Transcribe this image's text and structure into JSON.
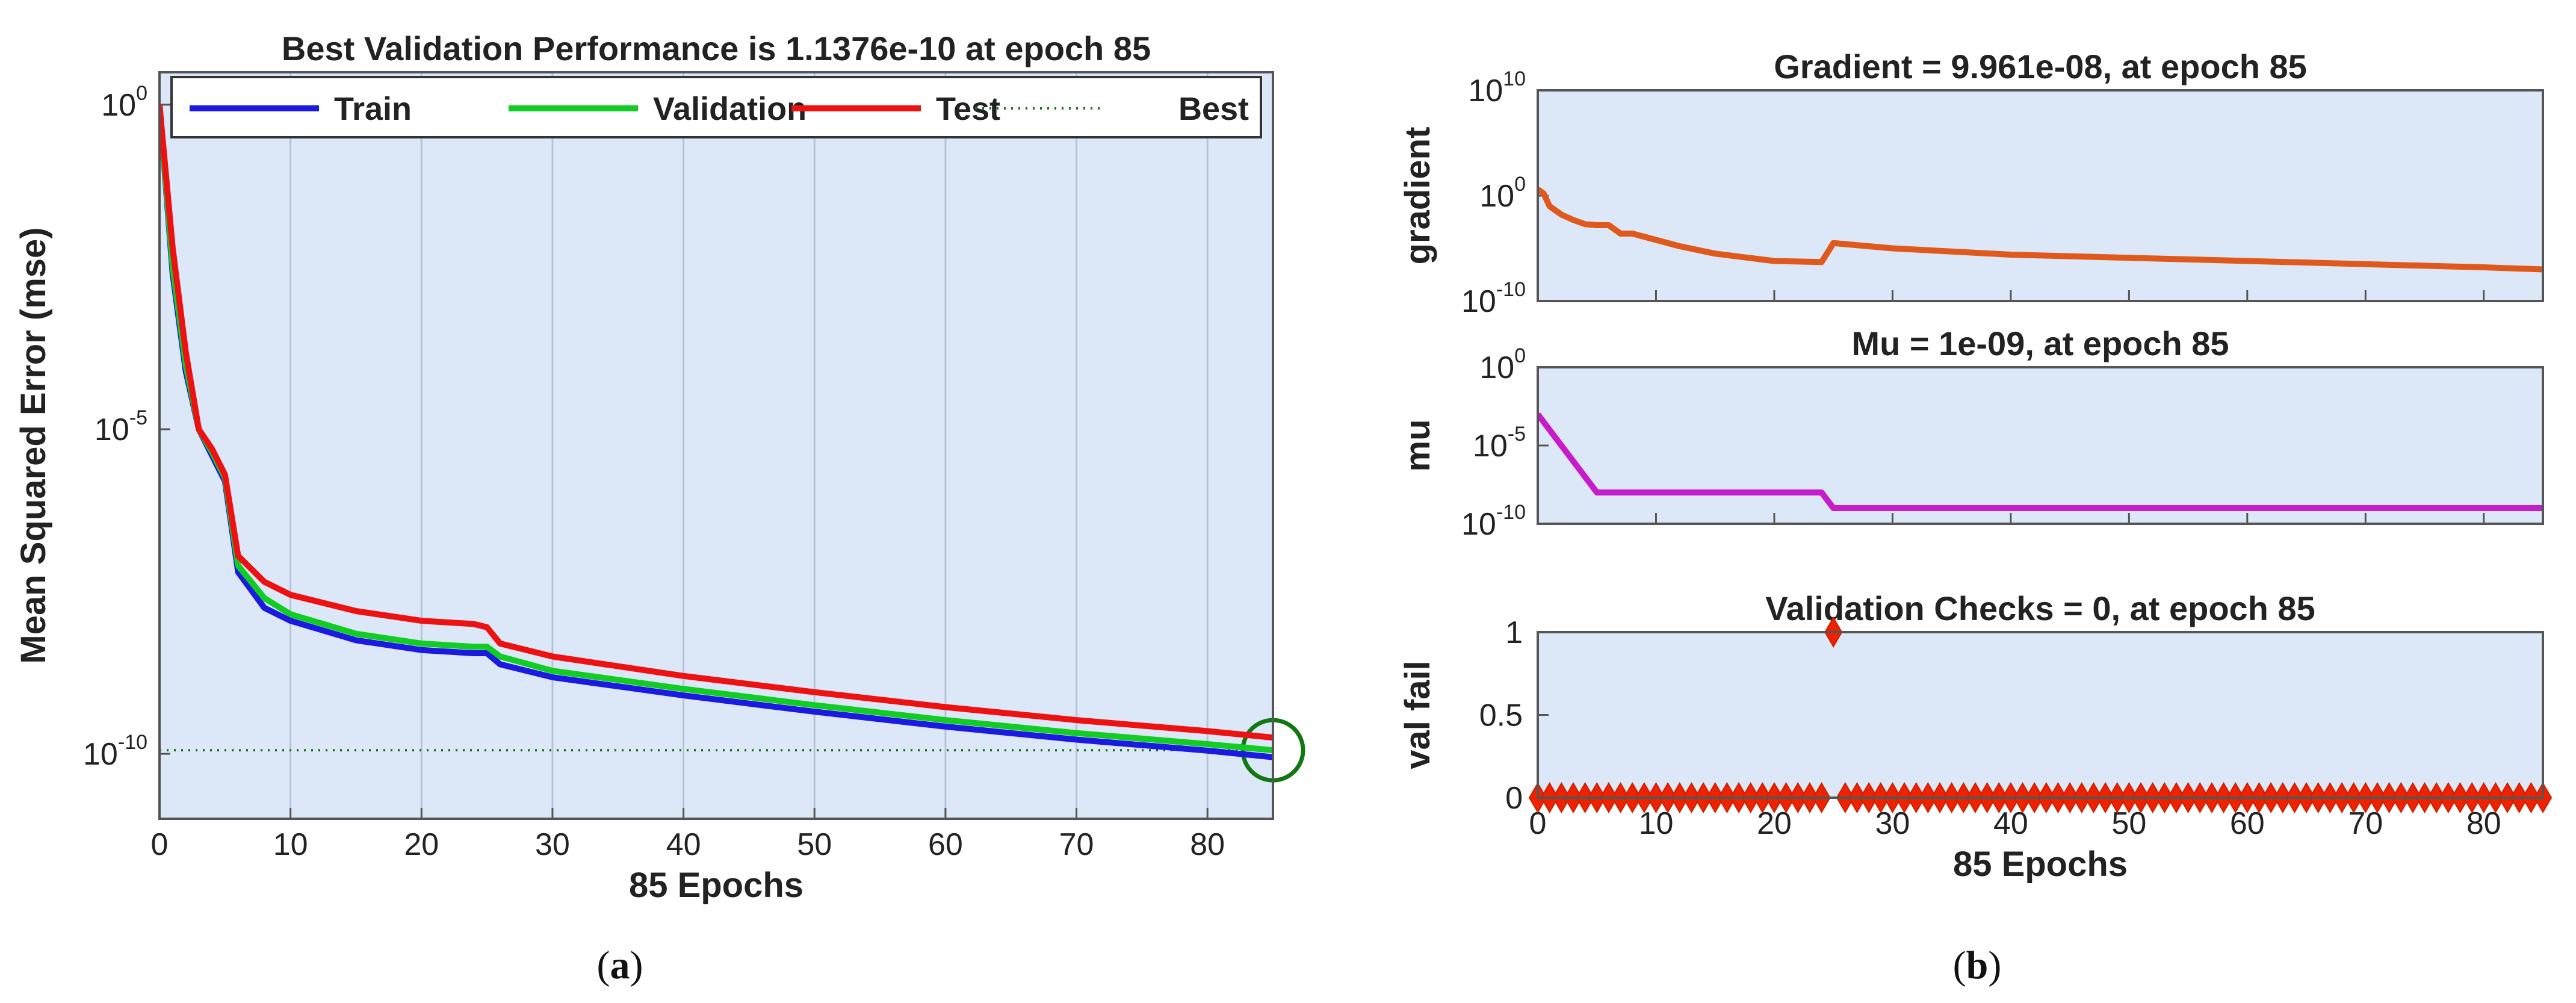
{
  "colors": {
    "plot_bg": "#dce8f7",
    "grid": "#b4c4d8",
    "axis": "#555555",
    "train": "#1a1ae0",
    "validation": "#11cc22",
    "test": "#ee1111",
    "best": "#117711",
    "gradient": "#e0591c",
    "mu": "#c61ccc",
    "valfail": "#ee2200"
  },
  "captions": {
    "a_open": "(",
    "a_letter": "a",
    "a_close": ")",
    "b_open": "(",
    "b_letter": "b",
    "b_close": ")"
  },
  "chart_data": [
    {
      "id": "performance",
      "type": "line",
      "title": "Best Validation Performance is 1.1376e-10 at epoch 85",
      "xlabel": "85 Epochs",
      "ylabel": "Mean Squared Error  (mse)",
      "yscale": "log",
      "xlim": [
        0,
        85
      ],
      "ylim_exp": [
        -11,
        0.5
      ],
      "xticks": [
        0,
        10,
        20,
        30,
        40,
        50,
        60,
        70,
        80
      ],
      "yticks": [
        {
          "base": "10",
          "exp": "0",
          "value_exp": 0
        },
        {
          "base": "10",
          "exp": "-5",
          "value_exp": -5
        },
        {
          "base": "10",
          "exp": "-10",
          "value_exp": -10
        }
      ],
      "legend": [
        {
          "label": "Train",
          "color_key": "train",
          "style": "solid"
        },
        {
          "label": "Validation",
          "color_key": "validation",
          "style": "solid"
        },
        {
          "label": "Test",
          "color_key": "test",
          "style": "solid"
        },
        {
          "label": "Best",
          "color_key": "best",
          "style": "dotted"
        }
      ],
      "best": {
        "epoch": 85,
        "value": 1.1376e-10,
        "log10": -9.944
      },
      "series": [
        {
          "name": "Train",
          "color_key": "train",
          "x": [
            0,
            1,
            2,
            3,
            4,
            5,
            6,
            8,
            10,
            15,
            20,
            24,
            25,
            26,
            30,
            40,
            50,
            60,
            70,
            80,
            85
          ],
          "log10": [
            0,
            -2.6,
            -4.1,
            -5.0,
            -5.4,
            -5.8,
            -7.2,
            -7.75,
            -7.95,
            -8.25,
            -8.4,
            -8.45,
            -8.45,
            -8.62,
            -8.82,
            -9.1,
            -9.35,
            -9.58,
            -9.78,
            -9.95,
            -10.05
          ]
        },
        {
          "name": "Validation",
          "color_key": "validation",
          "x": [
            0,
            1,
            2,
            3,
            4,
            5,
            6,
            8,
            10,
            15,
            20,
            24,
            25,
            26,
            30,
            40,
            50,
            60,
            70,
            80,
            85
          ],
          "log10": [
            0,
            -2.5,
            -4.0,
            -5.0,
            -5.35,
            -5.75,
            -7.1,
            -7.6,
            -7.85,
            -8.15,
            -8.3,
            -8.35,
            -8.35,
            -8.5,
            -8.72,
            -9.0,
            -9.25,
            -9.48,
            -9.68,
            -9.85,
            -9.944
          ]
        },
        {
          "name": "Test",
          "color_key": "test",
          "x": [
            0,
            1,
            2,
            3,
            4,
            5,
            6,
            8,
            10,
            15,
            20,
            24,
            25,
            26,
            30,
            40,
            50,
            60,
            70,
            80,
            85
          ],
          "log10": [
            0,
            -2.2,
            -3.8,
            -5.0,
            -5.3,
            -5.7,
            -6.95,
            -7.35,
            -7.55,
            -7.8,
            -7.95,
            -8.0,
            -8.05,
            -8.3,
            -8.5,
            -8.8,
            -9.05,
            -9.28,
            -9.48,
            -9.65,
            -9.75
          ]
        }
      ]
    },
    {
      "id": "gradient",
      "type": "line",
      "title": "Gradient = 9.961e-08, at epoch 85",
      "ylabel": "gradient",
      "yscale": "log",
      "xlim": [
        0,
        85
      ],
      "ylim_exp": [
        -10,
        10
      ],
      "yticks": [
        {
          "base": "10",
          "exp": "10",
          "value_exp": 10
        },
        {
          "base": "10",
          "exp": "0",
          "value_exp": 0
        },
        {
          "base": "10",
          "exp": "-10",
          "value_exp": -10
        }
      ],
      "series": [
        {
          "name": "gradient",
          "color_key": "gradient",
          "x": [
            0,
            0.5,
            1,
            2,
            3,
            4,
            5,
            6,
            7,
            8,
            10,
            12,
            15,
            20,
            24,
            25,
            26,
            30,
            40,
            50,
            60,
            70,
            80,
            85
          ],
          "log10": [
            0.6,
            0.2,
            -1.0,
            -1.8,
            -2.3,
            -2.7,
            -2.8,
            -2.8,
            -3.6,
            -3.6,
            -4.2,
            -4.8,
            -5.5,
            -6.2,
            -6.3,
            -4.5,
            -4.6,
            -5.0,
            -5.6,
            -5.9,
            -6.2,
            -6.5,
            -6.8,
            -7.0
          ]
        }
      ]
    },
    {
      "id": "mu",
      "type": "line",
      "title": "Mu = 1e-09, at epoch 85",
      "ylabel": "mu",
      "yscale": "log",
      "xlim": [
        0,
        85
      ],
      "ylim_exp": [
        -10,
        0
      ],
      "yticks": [
        {
          "base": "10",
          "exp": "0",
          "value_exp": 0
        },
        {
          "base": "10",
          "exp": "-5",
          "value_exp": -5
        },
        {
          "base": "10",
          "exp": "-10",
          "value_exp": -10
        }
      ],
      "series": [
        {
          "name": "mu",
          "color_key": "mu",
          "x": [
            0,
            5,
            24,
            25,
            85
          ],
          "log10": [
            -3,
            -8,
            -8,
            -9,
            -9
          ]
        }
      ]
    },
    {
      "id": "valfail",
      "type": "scatter",
      "title": "Validation Checks = 0, at epoch 85",
      "xlabel": "85 Epochs",
      "ylabel": "val fail",
      "xlim": [
        0,
        85
      ],
      "ylim": [
        0,
        1
      ],
      "xticks": [
        0,
        10,
        20,
        30,
        40,
        50,
        60,
        70,
        80
      ],
      "yticks": [
        "0",
        "0.5",
        "1"
      ],
      "series": [
        {
          "name": "val fail",
          "color_key": "valfail",
          "marker": "diamond",
          "x_range": [
            0,
            85
          ],
          "values": [
            0,
            0,
            0,
            0,
            0,
            0,
            0,
            0,
            0,
            0,
            0,
            0,
            0,
            0,
            0,
            0,
            0,
            0,
            0,
            0,
            0,
            0,
            0,
            0,
            0,
            1,
            0,
            0,
            0,
            0,
            0,
            0,
            0,
            0,
            0,
            0,
            0,
            0,
            0,
            0,
            0,
            0,
            0,
            0,
            0,
            0,
            0,
            0,
            0,
            0,
            0,
            0,
            0,
            0,
            0,
            0,
            0,
            0,
            0,
            0,
            0,
            0,
            0,
            0,
            0,
            0,
            0,
            0,
            0,
            0,
            0,
            0,
            0,
            0,
            0,
            0,
            0,
            0,
            0,
            0,
            0,
            0,
            0,
            0,
            0,
            0
          ]
        }
      ]
    }
  ]
}
